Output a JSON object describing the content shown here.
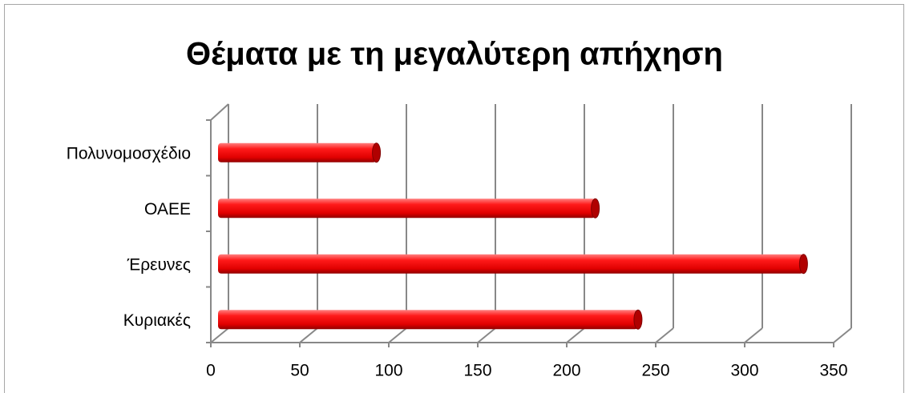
{
  "chart_data": {
    "type": "bar",
    "orientation": "horizontal",
    "title": "Θέματα με τη μεγαλύτερη απήχηση",
    "categories": [
      "Πολυνομοσχέδιο",
      "ΟΑΕΕ",
      "Έρευνες",
      "Κυριακές"
    ],
    "values": [
      89,
      212,
      329,
      236
    ],
    "color": "#e00000",
    "xlim": [
      0,
      350
    ],
    "xticks": [
      0,
      50,
      100,
      150,
      200,
      250,
      300,
      350
    ],
    "grid": true
  }
}
